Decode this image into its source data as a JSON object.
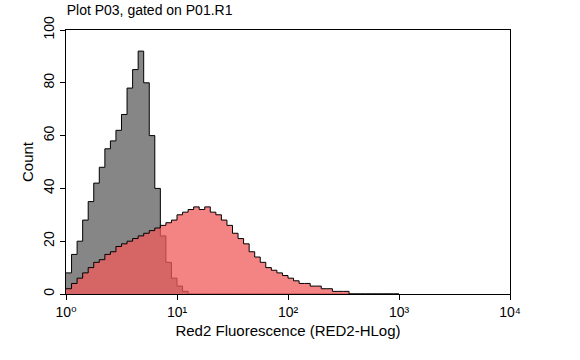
{
  "chart_data": {
    "type": "histogram",
    "title": "Plot P03, gated on P01.R1",
    "x_label": "Red2 Fluorescence (RED2-HLog)",
    "y_label": "Count",
    "log": "x",
    "grid": false,
    "bins": [
      1,
      1.122,
      1.259,
      1.413,
      1.585,
      1.778,
      1.995,
      2.239,
      2.512,
      2.818,
      3.162,
      3.548,
      3.981,
      4.467,
      5.012,
      5.623,
      6.31,
      7.079,
      7.943,
      8.913,
      10,
      11.22,
      12.59,
      14.13,
      15.85,
      17.78,
      19.95,
      22.39,
      25.12,
      28.18,
      31.62,
      35.48,
      39.81,
      44.67,
      50.12,
      56.23,
      63.1,
      70.79,
      79.43,
      89.13,
      100,
      112.2,
      125.9,
      141.3,
      158.5,
      177.8,
      199.5,
      223.9,
      251.2,
      281.8,
      316.2,
      354.8,
      398.1,
      446.7,
      501.2,
      562.3,
      631,
      707.9,
      794.3,
      891.3,
      1000
    ],
    "series": [
      {
        "color": "#7f7f7f",
        "values": [
          8,
          15,
          20,
          28,
          35,
          42,
          48,
          55,
          58,
          62,
          68,
          78,
          85,
          92,
          80,
          60,
          40,
          22,
          12,
          6,
          3,
          1,
          0,
          0,
          0,
          0,
          0,
          0,
          0,
          0,
          0,
          0,
          0,
          0,
          0,
          0,
          0,
          0,
          0,
          0,
          0,
          0,
          0,
          0,
          0,
          0,
          0,
          0,
          0,
          0,
          0,
          0,
          0,
          0,
          0,
          0,
          0,
          0,
          0,
          0
        ]
      },
      {
        "color": "#f05a5a",
        "values": [
          2,
          4,
          6,
          8,
          10,
          12,
          13,
          15,
          16,
          18,
          19,
          20,
          21,
          22,
          23,
          24,
          25,
          26,
          27,
          28,
          30,
          31,
          32,
          33,
          32,
          33,
          31,
          30,
          28,
          26,
          23,
          21,
          19,
          16,
          14,
          12,
          10,
          9,
          8,
          7,
          6,
          5,
          4,
          4,
          3,
          3,
          2,
          2,
          1,
          1,
          1,
          0,
          0,
          0,
          0,
          0,
          0,
          0,
          0,
          0
        ]
      }
    ],
    "xlim": [
      1,
      10000
    ],
    "xticks": [
      {
        "value": 1,
        "label": "10⁰"
      },
      {
        "value": 10,
        "label": "10¹"
      },
      {
        "value": 100,
        "label": "10²"
      },
      {
        "value": 1000,
        "label": "10³"
      },
      {
        "value": 10000,
        "label": "10⁴"
      }
    ],
    "ylim": [
      0,
      100
    ],
    "yticks": [
      0,
      20,
      40,
      60,
      80,
      100
    ]
  }
}
